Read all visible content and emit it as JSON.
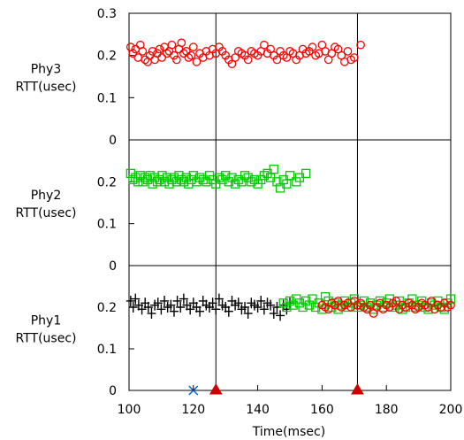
{
  "chart_data": {
    "type": "scatter",
    "xlabel": "Time(msec)",
    "xlim": [
      100,
      200
    ],
    "x_ticks": [
      "100",
      "120",
      "140",
      "160",
      "180",
      "200"
    ],
    "vlines": [
      127,
      171
    ],
    "colors": {
      "black": "#000000",
      "red": "#ff0000",
      "green": "#00cc00",
      "blue": "#0066dd",
      "marker_red": "#cc0000"
    },
    "panels": [
      {
        "ylabel": [
          "Phy3",
          "RTT(usec)"
        ],
        "ylim": [
          0,
          0.3
        ],
        "y_ticks": [
          "0",
          "0.1",
          "0.2",
          "0.3"
        ],
        "series": [
          {
            "marker": "circle",
            "color": "#ff0000",
            "x": [
              100.5,
              101.2,
              102,
              102.8,
              103.5,
              104.2,
              105,
              105.8,
              106.5,
              107.3,
              108,
              108.8,
              109.5,
              110.2,
              111,
              111.8,
              112.5,
              113.3,
              114,
              114.8,
              115.5,
              116.3,
              117,
              117.8,
              118.5,
              119.3,
              120,
              121,
              122,
              123,
              124,
              125,
              126,
              127,
              128,
              129,
              130,
              131,
              132,
              133,
              134,
              135,
              136,
              137,
              138,
              139,
              140,
              141,
              142,
              143,
              144,
              145,
              146,
              147,
              148,
              149,
              150,
              151,
              152,
              153,
              154,
              155,
              156,
              157,
              158,
              159,
              160,
              161,
              162,
              163,
              164,
              165,
              166,
              167,
              168,
              169,
              170,
              172
            ],
            "y": [
              0.22,
              0.205,
              0.215,
              0.195,
              0.225,
              0.21,
              0.19,
              0.185,
              0.2,
              0.21,
              0.19,
              0.205,
              0.215,
              0.195,
              0.22,
              0.205,
              0.21,
              0.225,
              0.2,
              0.19,
              0.215,
              0.23,
              0.205,
              0.21,
              0.195,
              0.2,
              0.22,
              0.185,
              0.205,
              0.195,
              0.21,
              0.2,
              0.215,
              0.205,
              0.22,
              0.21,
              0.2,
              0.19,
              0.18,
              0.195,
              0.21,
              0.205,
              0.2,
              0.19,
              0.21,
              0.205,
              0.2,
              0.21,
              0.225,
              0.205,
              0.215,
              0.2,
              0.19,
              0.21,
              0.2,
              0.195,
              0.21,
              0.205,
              0.19,
              0.2,
              0.215,
              0.205,
              0.21,
              0.22,
              0.2,
              0.205,
              0.225,
              0.21,
              0.19,
              0.205,
              0.22,
              0.215,
              0.2,
              0.185,
              0.21,
              0.19,
              0.195,
              0.225
            ]
          }
        ]
      },
      {
        "ylabel": [
          "Phy2",
          "RTT(usec)"
        ],
        "ylim": [
          0,
          0.3
        ],
        "y_ticks": [
          "0",
          "0.1",
          "0.2"
        ],
        "series": [
          {
            "marker": "square",
            "color": "#00cc00",
            "x": [
              100.5,
              101.2,
              102,
              102.8,
              103.5,
              104.3,
              105,
              105.8,
              106.5,
              107.3,
              108,
              108.8,
              109.5,
              110.3,
              111,
              111.8,
              112.5,
              113.3,
              114,
              114.8,
              115.5,
              116.3,
              117,
              117.8,
              118.5,
              119.3,
              120,
              121,
              122,
              123,
              124,
              125,
              126,
              127,
              128,
              129,
              130,
              131,
              132,
              133,
              134,
              135,
              136,
              137,
              138,
              139,
              140,
              141,
              142,
              143,
              144,
              145,
              146,
              147,
              148,
              149,
              150,
              152,
              153,
              155
            ],
            "y": [
              0.22,
              0.205,
              0.21,
              0.2,
              0.215,
              0.2,
              0.21,
              0.205,
              0.215,
              0.195,
              0.21,
              0.2,
              0.205,
              0.215,
              0.2,
              0.21,
              0.195,
              0.205,
              0.21,
              0.2,
              0.215,
              0.205,
              0.2,
              0.21,
              0.195,
              0.205,
              0.215,
              0.2,
              0.21,
              0.205,
              0.2,
              0.215,
              0.205,
              0.195,
              0.21,
              0.205,
              0.215,
              0.2,
              0.21,
              0.195,
              0.205,
              0.2,
              0.215,
              0.21,
              0.2,
              0.205,
              0.195,
              0.205,
              0.215,
              0.22,
              0.21,
              0.23,
              0.2,
              0.185,
              0.205,
              0.195,
              0.215,
              0.2,
              0.21,
              0.22
            ]
          }
        ]
      },
      {
        "ylabel": [
          "Phy1",
          "RTT(usec)"
        ],
        "ylim": [
          0,
          0.3
        ],
        "y_ticks": [
          "0",
          "0.1",
          "0.2"
        ],
        "series": [
          {
            "marker": "plus",
            "color": "#000000",
            "x": [
              100.5,
              101.3,
              102,
              103,
              104,
              105,
              106,
              107,
              108,
              109,
              110,
              111,
              112,
              113,
              114,
              115,
              116,
              117,
              118,
              119,
              120,
              121,
              122,
              123,
              124,
              125,
              126,
              127,
              128,
              129,
              130,
              131,
              132,
              133,
              134,
              135,
              136,
              137,
              138,
              139,
              140,
              141,
              142,
              143,
              144,
              145,
              146,
              147,
              148,
              149,
              150
            ],
            "y": [
              0.215,
              0.2,
              0.22,
              0.205,
              0.195,
              0.21,
              0.2,
              0.185,
              0.205,
              0.21,
              0.195,
              0.215,
              0.2,
              0.205,
              0.19,
              0.215,
              0.2,
              0.22,
              0.205,
              0.195,
              0.21,
              0.2,
              0.19,
              0.215,
              0.205,
              0.2,
              0.21,
              0.195,
              0.22,
              0.205,
              0.2,
              0.19,
              0.215,
              0.205,
              0.21,
              0.195,
              0.2,
              0.185,
              0.21,
              0.205,
              0.2,
              0.215,
              0.195,
              0.21,
              0.205,
              0.185,
              0.2,
              0.18,
              0.205,
              0.195,
              0.21
            ]
          },
          {
            "marker": "square",
            "color": "#00cc00",
            "x": [
              148,
              149,
              150,
              151,
              152,
              153,
              154,
              155,
              156,
              157,
              158,
              159,
              160,
              161,
              162,
              163,
              164,
              165,
              166,
              167,
              168,
              169,
              170,
              171,
              172,
              173,
              174,
              175,
              176,
              177,
              178,
              179,
              180,
              181,
              182,
              183,
              184,
              185,
              186,
              187,
              188,
              189,
              190,
              191,
              192,
              193,
              194,
              195,
              196,
              197,
              198,
              199,
              200
            ],
            "y": [
              0.21,
              0.2,
              0.215,
              0.205,
              0.22,
              0.21,
              0.2,
              0.215,
              0.205,
              0.22,
              0.2,
              0.21,
              0.195,
              0.225,
              0.215,
              0.2,
              0.21,
              0.195,
              0.205,
              0.215,
              0.2,
              0.21,
              0.22,
              0.2,
              0.205,
              0.215,
              0.2,
              0.21,
              0.195,
              0.205,
              0.215,
              0.2,
              0.21,
              0.22,
              0.2,
              0.205,
              0.215,
              0.195,
              0.2,
              0.21,
              0.22,
              0.2,
              0.205,
              0.215,
              0.2,
              0.195,
              0.21,
              0.205,
              0.215,
              0.2,
              0.195,
              0.21,
              0.22
            ]
          },
          {
            "marker": "circle",
            "color": "#ff0000",
            "x": [
              160,
              161,
              162,
              163,
              164,
              165,
              166,
              167,
              168,
              169,
              170,
              171,
              172,
              173,
              174,
              175,
              176,
              177,
              178,
              179,
              180,
              181,
              182,
              183,
              184,
              185,
              186,
              187,
              188,
              189,
              190,
              191,
              192,
              193,
              194,
              195,
              196,
              197,
              198,
              199,
              200
            ],
            "y": [
              0.205,
              0.2,
              0.195,
              0.21,
              0.205,
              0.215,
              0.2,
              0.205,
              0.21,
              0.2,
              0.215,
              0.205,
              0.21,
              0.2,
              0.195,
              0.205,
              0.185,
              0.2,
              0.21,
              0.195,
              0.205,
              0.2,
              0.21,
              0.215,
              0.195,
              0.205,
              0.2,
              0.21,
              0.205,
              0.195,
              0.2,
              0.21,
              0.205,
              0.2,
              0.215,
              0.195,
              0.205,
              0.2,
              0.21,
              0.2,
              0.205
            ]
          }
        ],
        "markers": [
          {
            "marker": "x",
            "color": "#0066dd",
            "x": 120,
            "y": 0
          },
          {
            "marker": "triangle",
            "color": "#cc0000",
            "x": 127,
            "y": 0
          },
          {
            "marker": "triangle",
            "color": "#cc0000",
            "x": 171,
            "y": 0
          }
        ]
      }
    ]
  }
}
